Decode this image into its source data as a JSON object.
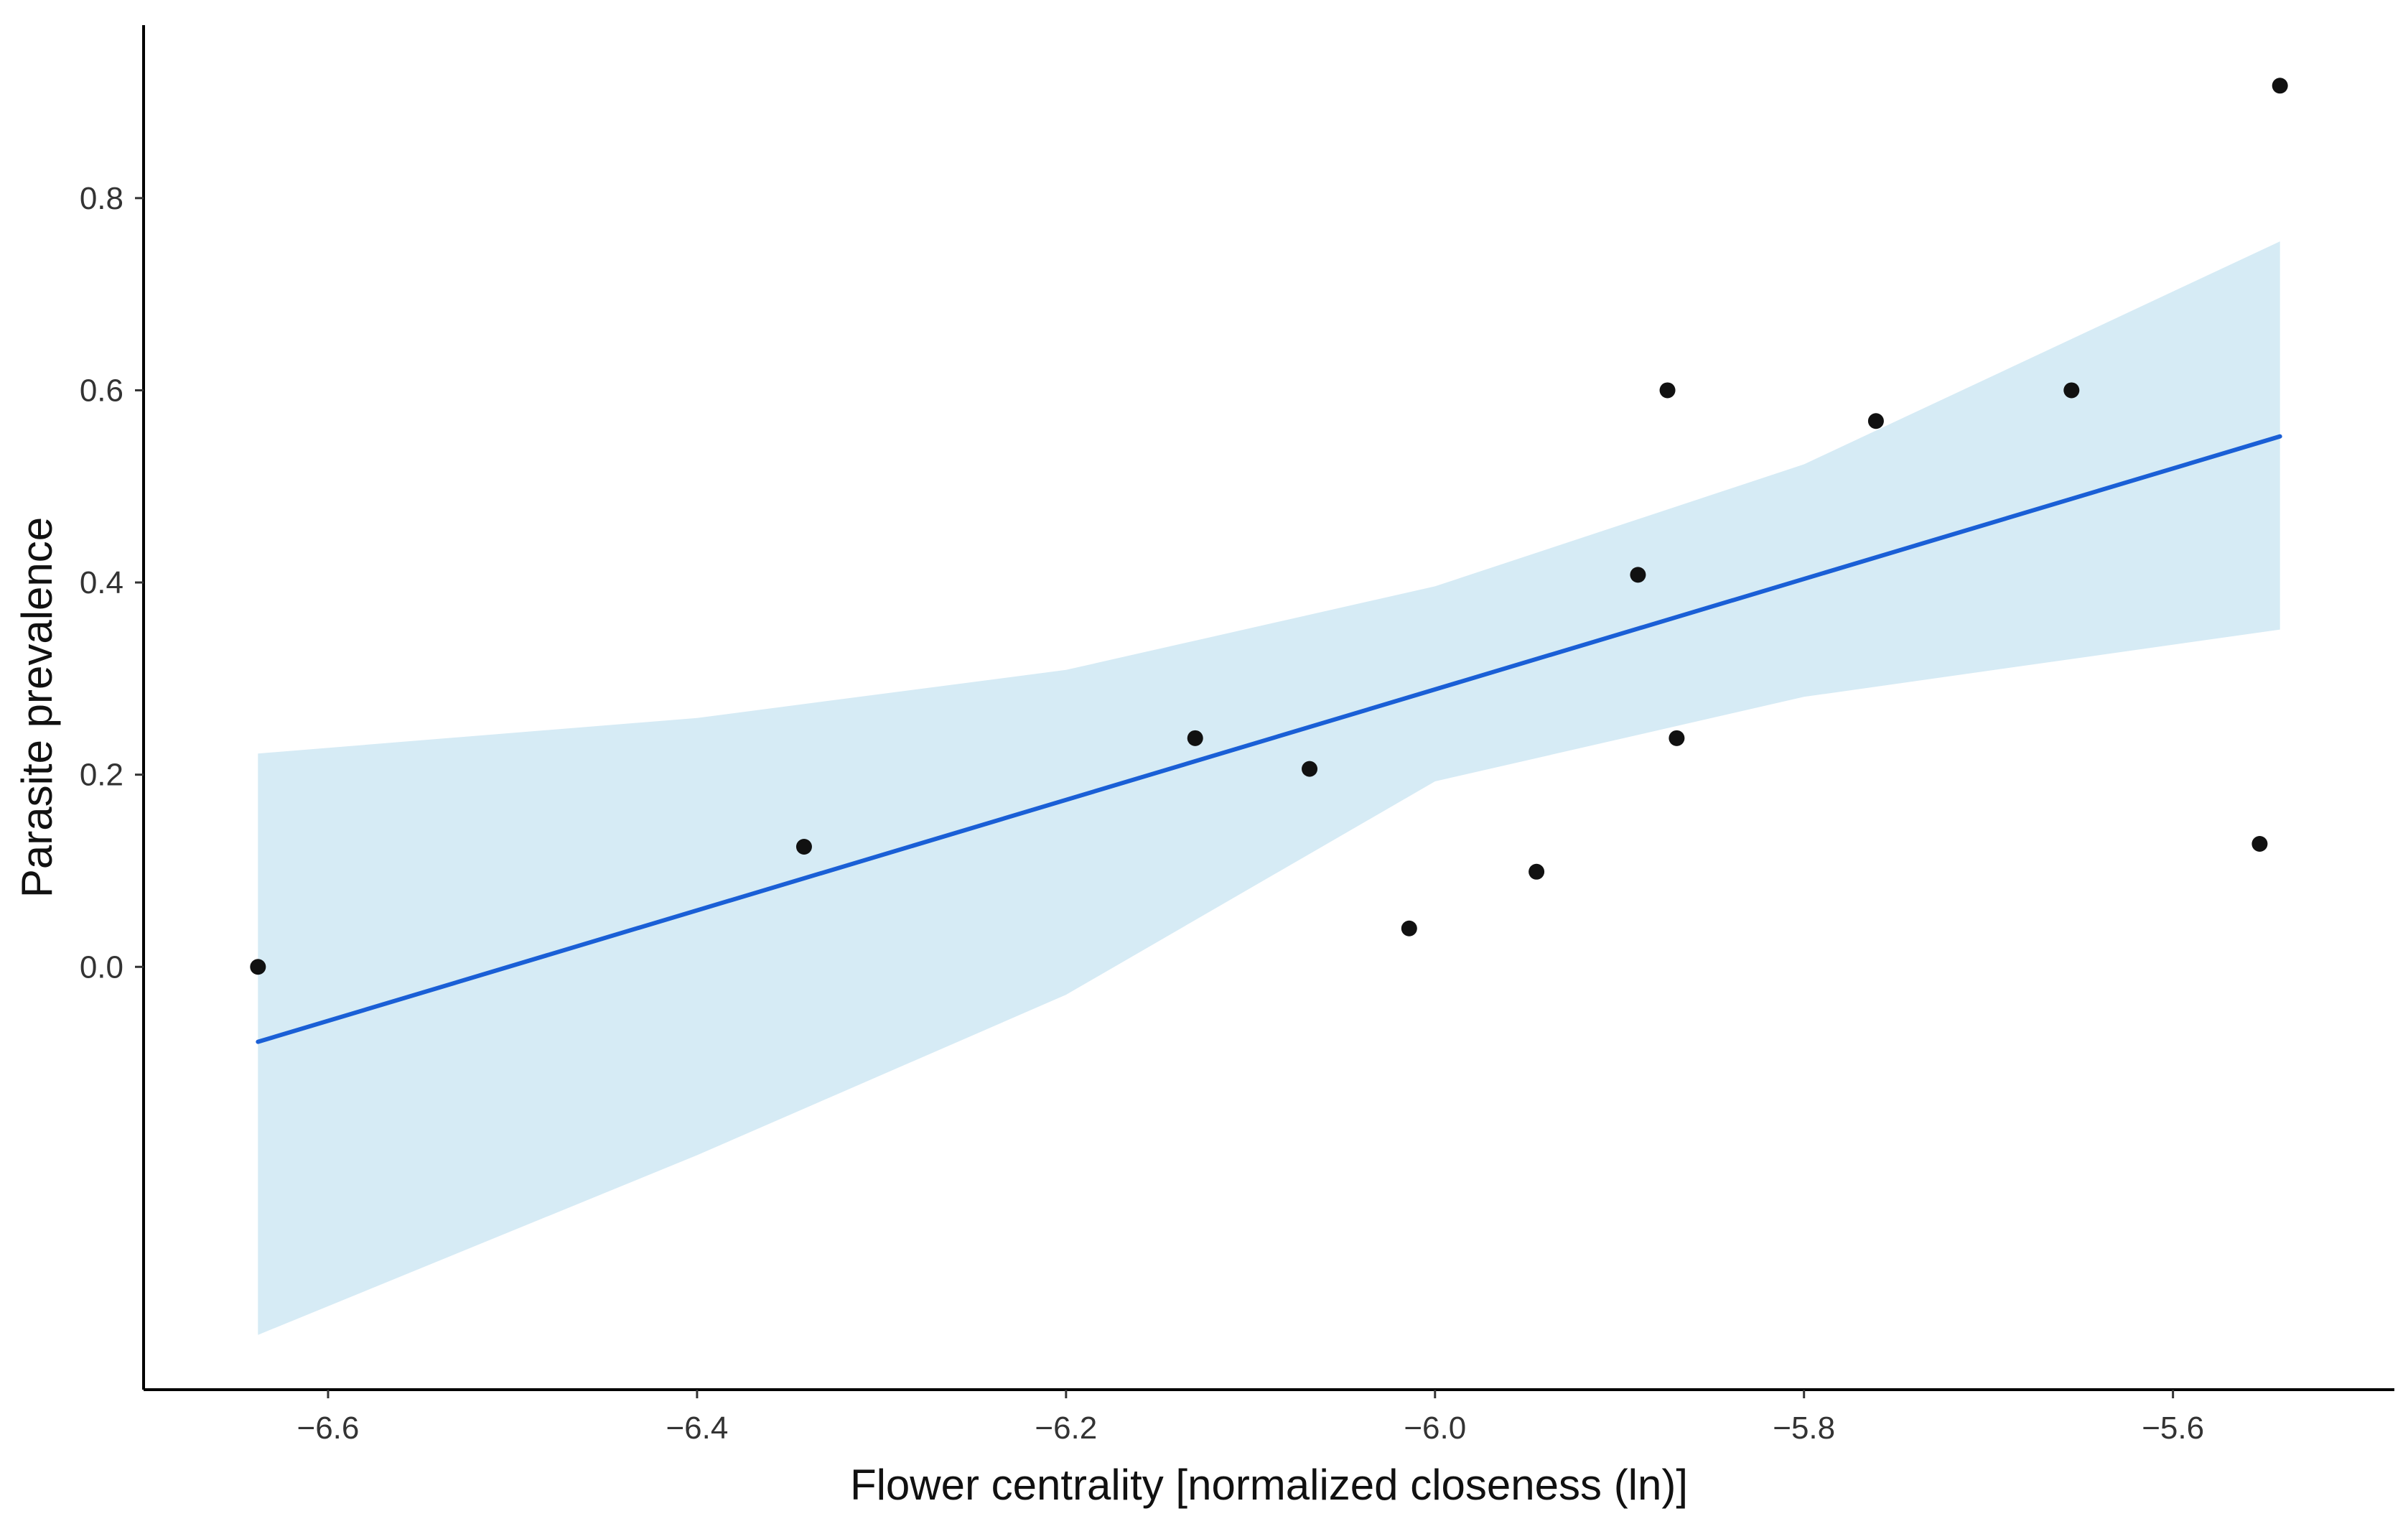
{
  "chart_data": {
    "type": "scatter",
    "title": "",
    "xlabel": "Flower centrality [normalized closeness (ln)]",
    "ylabel": "Parasite prevalence",
    "xlim": [
      -6.7,
      -5.48
    ],
    "ylim": [
      -0.44,
      0.98
    ],
    "xticks": [
      {
        "value": -6.6,
        "label": "−6.6"
      },
      {
        "value": -6.4,
        "label": "−6.4"
      },
      {
        "value": -6.2,
        "label": "−6.2"
      },
      {
        "value": -6.0,
        "label": "−6.0"
      },
      {
        "value": -5.8,
        "label": "−5.8"
      },
      {
        "value": -5.6,
        "label": "−5.6"
      }
    ],
    "yticks": [
      {
        "value": 0.0,
        "label": "0.0"
      },
      {
        "value": 0.2,
        "label": "0.2"
      },
      {
        "value": 0.4,
        "label": "0.4"
      },
      {
        "value": 0.6,
        "label": "0.6"
      },
      {
        "value": 0.8,
        "label": "0.8"
      }
    ],
    "grid": false,
    "points": [
      {
        "x": -6.638,
        "y": 0.0
      },
      {
        "x": -6.342,
        "y": 0.125
      },
      {
        "x": -6.13,
        "y": 0.238
      },
      {
        "x": -6.068,
        "y": 0.206
      },
      {
        "x": -6.014,
        "y": 0.04
      },
      {
        "x": -5.945,
        "y": 0.099
      },
      {
        "x": -5.89,
        "y": 0.408
      },
      {
        "x": -5.874,
        "y": 0.6
      },
      {
        "x": -5.869,
        "y": 0.238
      },
      {
        "x": -5.761,
        "y": 0.568
      },
      {
        "x": -5.655,
        "y": 0.6
      },
      {
        "x": -5.553,
        "y": 0.128
      },
      {
        "x": -5.542,
        "y": 0.917
      }
    ],
    "fit_line": {
      "x": [
        -6.638,
        -5.542
      ],
      "y": [
        -0.078,
        0.552
      ]
    },
    "confidence_band": {
      "x": [
        -6.638,
        -6.4,
        -6.2,
        -6.0,
        -5.8,
        -5.542
      ],
      "lower": [
        -0.383,
        -0.196,
        -0.029,
        0.193,
        0.281,
        0.351
      ],
      "upper": [
        0.222,
        0.259,
        0.309,
        0.396,
        0.523,
        0.755
      ]
    },
    "colors": {
      "points": "#111111",
      "fit_line": "#1a5fd6",
      "band": "#d6ebf5",
      "axis": "#000000"
    }
  }
}
